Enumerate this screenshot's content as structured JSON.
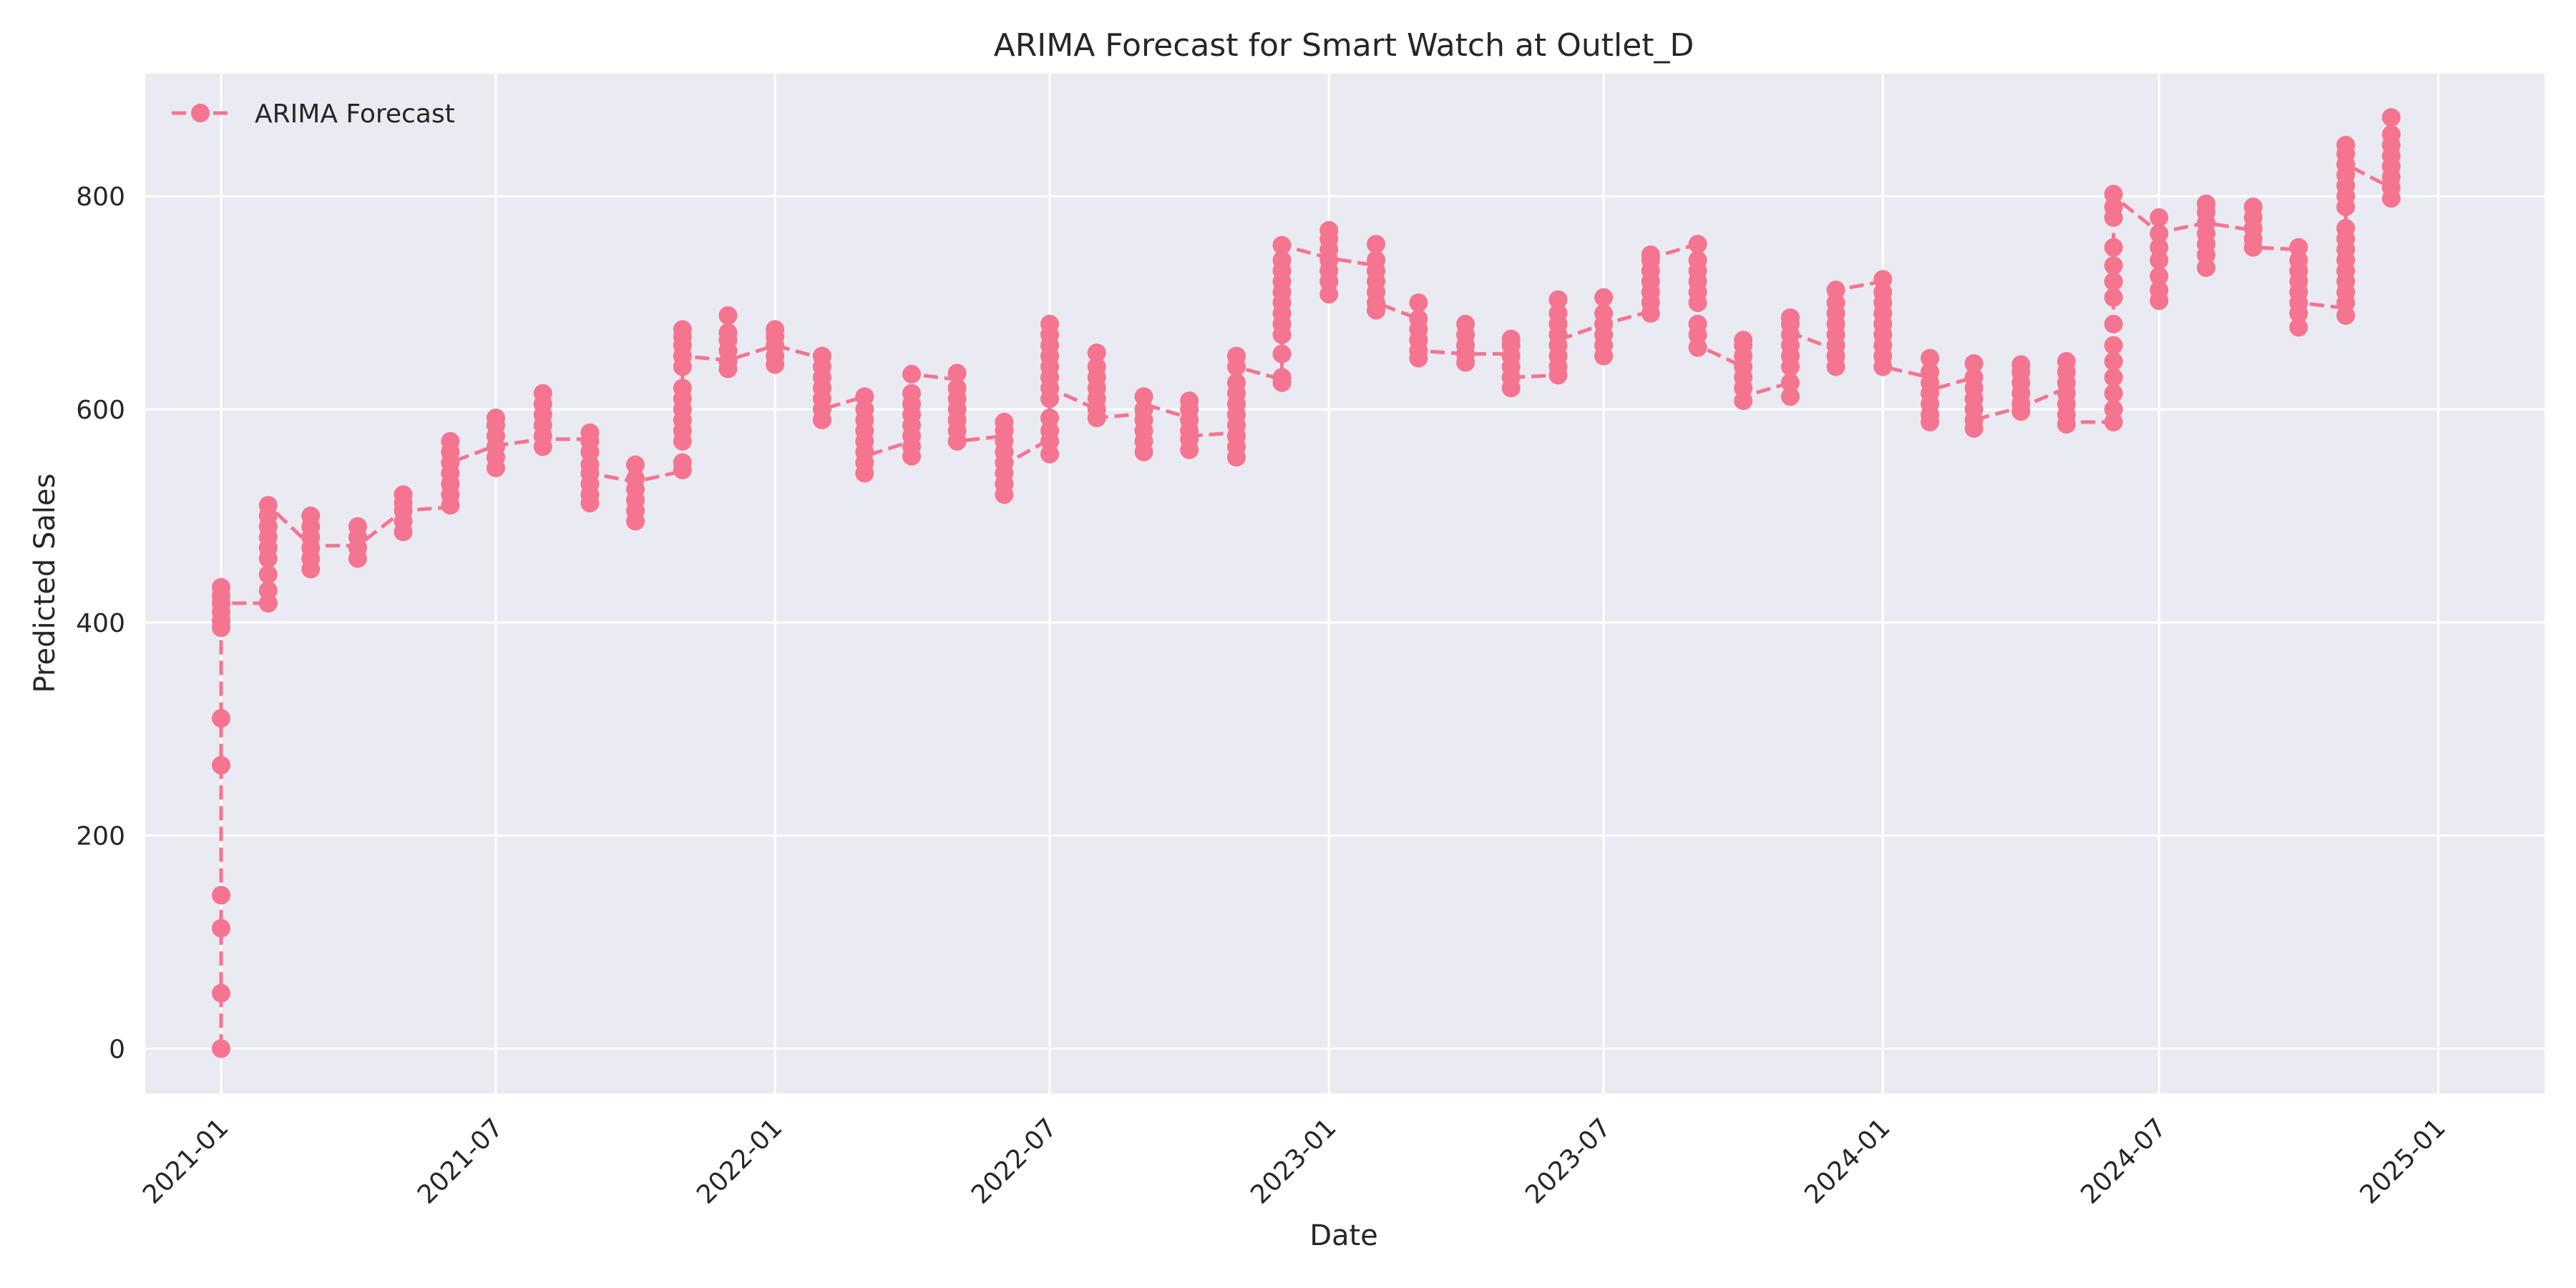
{
  "chart_data": {
    "type": "line",
    "title": "ARIMA Forecast for Smart Watch at Outlet_D",
    "xlabel": "Date",
    "ylabel": "Predicted Sales",
    "x_ticks": [
      "2021-01",
      "2021-07",
      "2022-01",
      "2022-07",
      "2023-01",
      "2023-07",
      "2024-01",
      "2024-07",
      "2025-01"
    ],
    "y_ticks": [
      0,
      200,
      400,
      600,
      800
    ],
    "ylim": [
      -42,
      915
    ],
    "xlim": [
      "2020-11-12",
      "2025-03-12"
    ],
    "grid": true,
    "legend": {
      "placement": "top-left",
      "entries": [
        "ARIMA Forecast"
      ]
    },
    "series_color": "#f5748f",
    "background_color": "#eaeaf2",
    "series": [
      {
        "name": "ARIMA Forecast",
        "points": [
          {
            "x": "2021-01-01",
            "y": [
              0,
              52,
              113,
              144,
              266,
              310,
              395,
              402,
              410,
              418,
              425,
              433
            ]
          },
          {
            "x": "2021-02-01",
            "y": [
              418,
              430,
              445,
              460,
              470,
              480,
              490,
              500,
              510
            ]
          },
          {
            "x": "2021-03-01",
            "y": [
              450,
              460,
              470,
              480,
              490,
              500
            ]
          },
          {
            "x": "2021-04-01",
            "y": [
              460,
              470,
              480,
              490
            ]
          },
          {
            "x": "2021-05-01",
            "y": [
              485,
              495,
              505,
              512,
              520
            ]
          },
          {
            "x": "2021-06-01",
            "y": [
              510,
              520,
              530,
              540,
              550,
              560,
              570
            ]
          },
          {
            "x": "2021-07-01",
            "y": [
              545,
              555,
              565,
              575,
              585,
              592
            ]
          },
          {
            "x": "2021-08-01",
            "y": [
              565,
              575,
              585,
              595,
              605,
              615
            ]
          },
          {
            "x": "2021-09-01",
            "y": [
              512,
              520,
              530,
              540,
              548,
              560,
              570,
              578
            ]
          },
          {
            "x": "2021-10-01",
            "y": [
              495,
              505,
              515,
              525,
              535,
              548
            ]
          },
          {
            "x": "2021-11-01",
            "y": [
              543,
              550,
              570,
              580,
              590,
              600,
              610,
              620,
              640,
              650,
              660,
              668,
              675
            ]
          },
          {
            "x": "2021-12-01",
            "y": [
              638,
              645,
              655,
              665,
              672,
              688
            ]
          },
          {
            "x": "2022-01-01",
            "y": [
              642,
              650,
              660,
              668,
              675
            ]
          },
          {
            "x": "2022-02-01",
            "y": [
              590,
              600,
              610,
              620,
              630,
              640,
              650
            ]
          },
          {
            "x": "2022-03-01",
            "y": [
              540,
              550,
              560,
              570,
              580,
              590,
              600,
              612
            ]
          },
          {
            "x": "2022-04-01",
            "y": [
              556,
              565,
              575,
              585,
              595,
              605,
              615,
              633
            ]
          },
          {
            "x": "2022-05-01",
            "y": [
              570,
              580,
              590,
              600,
              610,
              620,
              634
            ]
          },
          {
            "x": "2022-06-01",
            "y": [
              520,
              530,
              540,
              550,
              560,
              570,
              580,
              588
            ]
          },
          {
            "x": "2022-07-01",
            "y": [
              558,
              570,
              580,
              592,
              610,
              620,
              630,
              640,
              650,
              660,
              670,
              680
            ]
          },
          {
            "x": "2022-08-01",
            "y": [
              592,
              600,
              610,
              620,
              630,
              640,
              653
            ]
          },
          {
            "x": "2022-09-01",
            "y": [
              560,
              570,
              580,
              590,
              600,
              612
            ]
          },
          {
            "x": "2022-10-01",
            "y": [
              562,
              572,
              580,
              590,
              600,
              608
            ]
          },
          {
            "x": "2022-11-01",
            "y": [
              555,
              565,
              575,
              585,
              595,
              605,
              615,
              625,
              640,
              650
            ]
          },
          {
            "x": "2022-12-01",
            "y": [
              625,
              630,
              652,
              670,
              680,
              690,
              700,
              710,
              720,
              730,
              740,
              754
            ]
          },
          {
            "x": "2023-01-01",
            "y": [
              708,
              720,
              730,
              740,
              750,
              760,
              768
            ]
          },
          {
            "x": "2023-02-01",
            "y": [
              693,
              700,
              710,
              720,
              730,
              740,
              755
            ]
          },
          {
            "x": "2023-03-01",
            "y": [
              648,
              655,
              665,
              675,
              685,
              700
            ]
          },
          {
            "x": "2023-04-01",
            "y": [
              644,
              652,
              660,
              670,
              680
            ]
          },
          {
            "x": "2023-05-01",
            "y": [
              620,
              630,
              640,
              650,
              660,
              666
            ]
          },
          {
            "x": "2023-06-01",
            "y": [
              632,
              640,
              650,
              660,
              670,
              680,
              690,
              703
            ]
          },
          {
            "x": "2023-07-01",
            "y": [
              650,
              660,
              670,
              680,
              690,
              705
            ]
          },
          {
            "x": "2023-08-01",
            "y": [
              690,
              700,
              710,
              720,
              730,
              740,
              745
            ]
          },
          {
            "x": "2023-09-01",
            "y": [
              658,
              670,
              680,
              700,
              710,
              720,
              730,
              740,
              755
            ]
          },
          {
            "x": "2023-10-01",
            "y": [
              608,
              620,
              630,
              640,
              650,
              660,
              665
            ]
          },
          {
            "x": "2023-11-01",
            "y": [
              612,
              625,
              640,
              650,
              660,
              670,
              680,
              686
            ]
          },
          {
            "x": "2023-12-01",
            "y": [
              640,
              650,
              660,
              670,
              680,
              690,
              700,
              712
            ]
          },
          {
            "x": "2024-01-01",
            "y": [
              640,
              650,
              660,
              670,
              680,
              690,
              700,
              710,
              722
            ]
          },
          {
            "x": "2024-02-01",
            "y": [
              588,
              595,
              605,
              615,
              625,
              635,
              648
            ]
          },
          {
            "x": "2024-03-01",
            "y": [
              582,
              590,
              600,
              610,
              620,
              630,
              643
            ]
          },
          {
            "x": "2024-04-01",
            "y": [
              598,
              605,
              615,
              625,
              635,
              642
            ]
          },
          {
            "x": "2024-05-01",
            "y": [
              586,
              595,
              605,
              615,
              625,
              635,
              645
            ]
          },
          {
            "x": "2024-06-01",
            "y": [
              588,
              600,
              615,
              630,
              645,
              660,
              680,
              705,
              720,
              735,
              752,
              780,
              790,
              802
            ]
          },
          {
            "x": "2024-07-01",
            "y": [
              702,
              712,
              725,
              740,
              752,
              765,
              780
            ]
          },
          {
            "x": "2024-08-01",
            "y": [
              733,
              745,
              755,
              765,
              775,
              785,
              793
            ]
          },
          {
            "x": "2024-09-01",
            "y": [
              752,
              760,
              770,
              780,
              790
            ]
          },
          {
            "x": "2024-10-01",
            "y": [
              677,
              690,
              700,
              710,
              720,
              730,
              740,
              752
            ]
          },
          {
            "x": "2024-11-01",
            "y": [
              688,
              700,
              710,
              720,
              730,
              740,
              750,
              760,
              770,
              790,
              800,
              810,
              820,
              830,
              840,
              848
            ]
          },
          {
            "x": "2024-12-01",
            "y": [
              798,
              808,
              818,
              828,
              838,
              848,
              858,
              874
            ]
          }
        ],
        "line_path": [
          [
            "2021-01-01",
            0
          ],
          [
            "2021-01-01",
            52
          ],
          [
            "2021-01-01",
            113
          ],
          [
            "2021-01-01",
            144
          ],
          [
            "2021-01-01",
            266
          ],
          [
            "2021-01-01",
            310
          ],
          [
            "2021-01-01",
            418
          ],
          [
            "2021-02-01",
            418
          ],
          [
            "2021-02-01",
            510
          ],
          [
            "2021-03-01",
            472
          ],
          [
            "2021-04-01",
            472
          ],
          [
            "2021-05-01",
            505
          ],
          [
            "2021-06-01",
            508
          ],
          [
            "2021-06-01",
            550
          ],
          [
            "2021-07-01",
            566
          ],
          [
            "2021-08-01",
            572
          ],
          [
            "2021-09-01",
            572
          ],
          [
            "2021-09-01",
            540
          ],
          [
            "2021-10-01",
            532
          ],
          [
            "2021-11-01",
            542
          ],
          [
            "2021-11-01",
            650
          ],
          [
            "2021-12-01",
            646
          ],
          [
            "2022-01-01",
            660
          ],
          [
            "2022-02-01",
            648
          ],
          [
            "2022-02-01",
            600
          ],
          [
            "2022-03-01",
            612
          ],
          [
            "2022-03-01",
            556
          ],
          [
            "2022-04-01",
            570
          ],
          [
            "2022-04-01",
            633
          ],
          [
            "2022-05-01",
            628
          ],
          [
            "2022-05-01",
            570
          ],
          [
            "2022-06-01",
            575
          ],
          [
            "2022-06-01",
            548
          ],
          [
            "2022-07-01",
            572
          ],
          [
            "2022-07-01",
            620
          ],
          [
            "2022-08-01",
            600
          ],
          [
            "2022-08-01",
            592
          ],
          [
            "2022-09-01",
            596
          ],
          [
            "2022-09-01",
            605
          ],
          [
            "2022-10-01",
            592
          ],
          [
            "2022-10-01",
            575
          ],
          [
            "2022-11-01",
            578
          ],
          [
            "2022-11-01",
            640
          ],
          [
            "2022-12-01",
            628
          ],
          [
            "2022-12-01",
            754
          ],
          [
            "2023-01-01",
            742
          ],
          [
            "2023-02-01",
            735
          ],
          [
            "2023-02-01",
            700
          ],
          [
            "2023-03-01",
            685
          ],
          [
            "2023-03-01",
            655
          ],
          [
            "2023-04-01",
            652
          ],
          [
            "2023-05-01",
            652
          ],
          [
            "2023-05-01",
            630
          ],
          [
            "2023-06-01",
            632
          ],
          [
            "2023-06-01",
            665
          ],
          [
            "2023-07-01",
            680
          ],
          [
            "2023-08-01",
            692
          ],
          [
            "2023-08-01",
            742
          ],
          [
            "2023-09-01",
            755
          ],
          [
            "2023-09-01",
            660
          ],
          [
            "2023-10-01",
            640
          ],
          [
            "2023-10-01",
            612
          ],
          [
            "2023-11-01",
            625
          ],
          [
            "2023-11-01",
            672
          ],
          [
            "2023-12-01",
            656
          ],
          [
            "2023-12-01",
            712
          ],
          [
            "2024-01-01",
            720
          ],
          [
            "2024-01-01",
            640
          ],
          [
            "2024-02-01",
            630
          ],
          [
            "2024-02-01",
            618
          ],
          [
            "2024-03-01",
            630
          ],
          [
            "2024-03-01",
            590
          ],
          [
            "2024-04-01",
            602
          ],
          [
            "2024-05-01",
            620
          ],
          [
            "2024-05-01",
            588
          ],
          [
            "2024-06-01",
            588
          ],
          [
            "2024-06-01",
            800
          ],
          [
            "2024-07-01",
            766
          ],
          [
            "2024-08-01",
            775
          ],
          [
            "2024-09-01",
            768
          ],
          [
            "2024-09-01",
            752
          ],
          [
            "2024-10-01",
            750
          ],
          [
            "2024-10-01",
            700
          ],
          [
            "2024-11-01",
            695
          ],
          [
            "2024-11-01",
            830
          ],
          [
            "2024-12-01",
            808
          ]
        ]
      }
    ]
  }
}
